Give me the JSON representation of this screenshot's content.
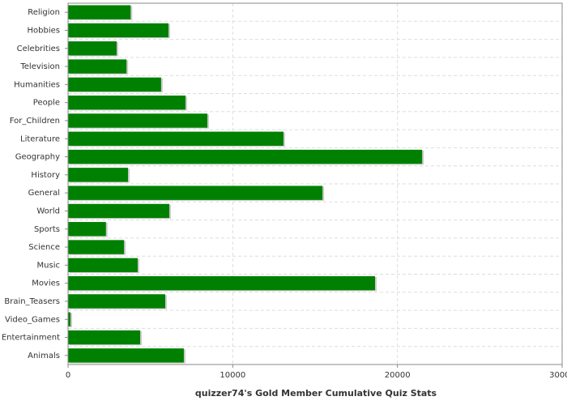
{
  "chart_data": {
    "type": "barh",
    "title": "quizzer74's Gold Member Cumulative Quiz Stats",
    "categories": [
      "Religion",
      "Hobbies",
      "Celebrities",
      "Television",
      "Humanities",
      "People",
      "For_Children",
      "Literature",
      "Geography",
      "History",
      "General",
      "World",
      "Sports",
      "Science",
      "Music",
      "Movies",
      "Brain_Teasers",
      "Video_Games",
      "Entertainment",
      "Animals"
    ],
    "values": [
      3800,
      6100,
      2950,
      3550,
      5650,
      7130,
      8460,
      13080,
      21500,
      3640,
      15450,
      6150,
      2300,
      3400,
      4230,
      18640,
      5900,
      150,
      4380,
      7030
    ],
    "color": "#008000",
    "xlim": [
      0,
      30000
    ],
    "xticks": [
      0,
      10000,
      20000,
      30000
    ],
    "grid": true
  }
}
